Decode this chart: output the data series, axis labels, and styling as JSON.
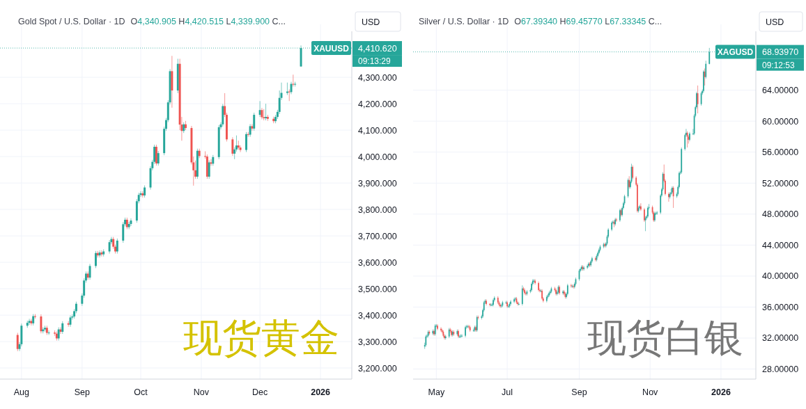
{
  "chart_data": [
    {
      "type": "candlestick",
      "title": "Gold Spot / U.S. Dollar · 1D",
      "subtitle": "O4,340.905  H4,420.515  L4,339.900  C...",
      "ylabel": "USD",
      "xlim": [
        "2025-07-21",
        "2026-01-17"
      ],
      "xticks": [
        {
          "value": "2025-08-01",
          "label": "Aug"
        },
        {
          "value": "2025-09-01",
          "label": "Sep"
        },
        {
          "value": "2025-10-01",
          "label": "Oct"
        },
        {
          "value": "2025-11-01",
          "label": "Nov"
        },
        {
          "value": "2025-12-01",
          "label": "Dec"
        },
        {
          "value": "2026-01-01",
          "label": "2026"
        }
      ],
      "ylim": [
        3158,
        4474
      ],
      "yticks": [
        {
          "value": 3200,
          "label": "3,200.000"
        },
        {
          "value": 3300,
          "label": "3,300.000"
        },
        {
          "value": 3400,
          "label": "3,400.000"
        },
        {
          "value": 3500,
          "label": "3,500.000"
        },
        {
          "value": 3600,
          "label": "3,600.000"
        },
        {
          "value": 3700,
          "label": "3,700.000"
        },
        {
          "value": 3800,
          "label": "3,800.000"
        },
        {
          "value": 3900,
          "label": "3,900.000"
        },
        {
          "value": 4000,
          "label": "4,000.000"
        },
        {
          "value": 4100,
          "label": "4,100.000"
        },
        {
          "value": 4200,
          "label": "4,200.000"
        },
        {
          "value": 4300,
          "label": "4,300.000"
        }
      ],
      "grid": true,
      "ref_lines": [
        {
          "axis": "y",
          "value": 4410.62,
          "label": "4,410.620",
          "color": "#26a69a",
          "line_style": "dotted"
        }
      ],
      "annotations": [
        {
          "text": "XAUUSD",
          "y": 4410.62
        },
        "09:13:29",
        "现货黄金"
      ],
      "x": [
        "2025-07-30",
        "2025-07-31",
        "2025-08-01",
        "2025-08-04",
        "2025-08-05",
        "2025-08-06",
        "2025-08-07",
        "2025-08-08",
        "2025-08-11",
        "2025-08-12",
        "2025-08-13",
        "2025-08-14",
        "2025-08-15",
        "2025-08-18",
        "2025-08-19",
        "2025-08-20",
        "2025-08-21",
        "2025-08-22",
        "2025-08-25",
        "2025-08-26",
        "2025-08-27",
        "2025-08-28",
        "2025-08-29",
        "2025-09-01",
        "2025-09-02",
        "2025-09-03",
        "2025-09-04",
        "2025-09-05",
        "2025-09-08",
        "2025-09-09",
        "2025-09-10",
        "2025-09-11",
        "2025-09-12",
        "2025-09-15",
        "2025-09-16",
        "2025-09-17",
        "2025-09-18",
        "2025-09-19",
        "2025-09-22",
        "2025-09-23",
        "2025-09-24",
        "2025-09-25",
        "2025-09-26",
        "2025-09-29",
        "2025-09-30",
        "2025-10-01",
        "2025-10-02",
        "2025-10-03",
        "2025-10-06",
        "2025-10-07",
        "2025-10-08",
        "2025-10-09",
        "2025-10-10",
        "2025-10-13",
        "2025-10-14",
        "2025-10-15",
        "2025-10-16",
        "2025-10-17",
        "2025-10-20",
        "2025-10-21",
        "2025-10-22",
        "2025-10-23",
        "2025-10-24",
        "2025-10-27",
        "2025-10-28",
        "2025-10-29",
        "2025-10-30",
        "2025-10-31",
        "2025-11-03",
        "2025-11-04",
        "2025-11-05",
        "2025-11-06",
        "2025-11-07",
        "2025-11-10",
        "2025-11-11",
        "2025-11-12",
        "2025-11-13",
        "2025-11-14",
        "2025-11-17",
        "2025-11-18",
        "2025-11-19",
        "2025-11-20",
        "2025-11-21",
        "2025-11-24",
        "2025-11-25",
        "2025-11-26",
        "2025-11-27",
        "2025-11-28",
        "2025-12-01",
        "2025-12-02",
        "2025-12-03",
        "2025-12-04",
        "2025-12-05",
        "2025-12-08",
        "2025-12-09",
        "2025-12-10",
        "2025-12-11",
        "2025-12-12",
        "2025-12-15",
        "2025-12-16",
        "2025-12-17",
        "2025-12-18",
        "2025-12-19",
        "2025-12-22"
      ],
      "ohlc": [
        [
          3325,
          3333,
          3264,
          3272
        ],
        [
          3272,
          3298,
          3264,
          3290
        ],
        [
          3290,
          3368,
          3282,
          3360
        ],
        [
          3360,
          3379,
          3352,
          3371
        ],
        [
          3371,
          3386,
          3363,
          3378
        ],
        [
          3378,
          3386,
          3361,
          3369
        ],
        [
          3369,
          3404,
          3361,
          3396
        ],
        [
          3396,
          3404,
          3387,
          3395
        ],
        [
          3395,
          3403,
          3331,
          3339
        ],
        [
          3339,
          3354,
          3331,
          3346
        ],
        [
          3346,
          3360,
          3338,
          3352
        ],
        [
          3352,
          3360,
          3325,
          3333
        ],
        [
          3333,
          3342,
          3325,
          3334
        ],
        [
          3334,
          3342,
          3322,
          3330
        ],
        [
          3330,
          3338,
          3304,
          3312
        ],
        [
          3312,
          3354,
          3304,
          3346
        ],
        [
          3346,
          3354,
          3329,
          3337
        ],
        [
          3337,
          3377,
          3329,
          3369
        ],
        [
          3369,
          3377,
          3356,
          3364
        ],
        [
          3364,
          3399,
          3356,
          3391
        ],
        [
          3391,
          3403,
          3383,
          3395
        ],
        [
          3395,
          3423,
          3387,
          3415
        ],
        [
          3415,
          3451,
          3407,
          3443
        ],
        [
          3443,
          3482,
          3435,
          3474
        ],
        [
          3474,
          3539,
          3466,
          3531
        ],
        [
          3531,
          3565,
          3523,
          3557
        ],
        [
          3557,
          3565,
          3534,
          3542
        ],
        [
          3542,
          3594,
          3534,
          3586
        ],
        [
          3586,
          3643,
          3578,
          3635
        ],
        [
          3635,
          3643,
          3618,
          3626
        ],
        [
          3626,
          3645,
          3618,
          3637
        ],
        [
          3637,
          3645,
          3622,
          3630
        ],
        [
          3630,
          3649,
          3622,
          3641
        ],
        [
          3641,
          3684,
          3633,
          3676
        ],
        [
          3676,
          3696,
          3668,
          3688
        ],
        [
          3688,
          3696,
          3651,
          3659
        ],
        [
          3659,
          3667,
          3633,
          3641
        ],
        [
          3641,
          3690,
          3633,
          3682
        ],
        [
          3682,
          3752,
          3674,
          3744
        ],
        [
          3744,
          3769,
          3736,
          3761
        ],
        [
          3761,
          3769,
          3725,
          3733
        ],
        [
          3733,
          3753,
          3725,
          3745
        ],
        [
          3745,
          3766,
          3737,
          3758
        ],
        [
          3758,
          3839,
          3750,
          3831
        ],
        [
          3831,
          3863,
          3823,
          3855
        ],
        [
          3855,
          3869,
          3847,
          3861
        ],
        [
          3861,
          3869,
          3845,
          3853
        ],
        [
          3853,
          3891,
          3845,
          3883
        ],
        [
          3883,
          3964,
          3875,
          3956
        ],
        [
          3956,
          3988,
          3948,
          3980
        ],
        [
          3980,
          4045,
          3972,
          4037
        ],
        [
          4037,
          4045,
          3966,
          3974
        ],
        [
          3974,
          4021,
          3966,
          4013
        ],
        [
          4013,
          4113,
          4005,
          4105
        ],
        [
          4105,
          4146,
          4097,
          4138
        ],
        [
          4138,
          4213,
          4130,
          4205
        ],
        [
          4205,
          4331,
          4197,
          4323
        ],
        [
          4323,
          4381,
          4185,
          4250
        ],
        [
          4250,
          4370,
          4240,
          4351
        ],
        [
          4351,
          4370,
          4100,
          4121
        ],
        [
          4121,
          4150,
          4060,
          4097
        ],
        [
          4097,
          4130,
          4089,
          4122
        ],
        [
          4122,
          4135,
          4100,
          4108
        ],
        [
          4108,
          4116,
          3970,
          3978
        ],
        [
          3978,
          4000,
          3890,
          3948
        ],
        [
          3948,
          3985,
          3916,
          3924
        ],
        [
          3924,
          4030,
          3916,
          4022
        ],
        [
          4022,
          4030,
          3994,
          4002
        ],
        [
          4002,
          4020,
          3992,
          4000
        ],
        [
          4000,
          4008,
          3916,
          3924
        ],
        [
          3924,
          3986,
          3916,
          3978
        ],
        [
          3978,
          3990,
          3965,
          3973
        ],
        [
          3973,
          4006,
          3965,
          3998
        ],
        [
          3998,
          4119,
          3990,
          4111
        ],
        [
          4111,
          4130,
          4103,
          4122
        ],
        [
          4122,
          4199,
          4114,
          4191
        ],
        [
          4191,
          4240,
          4150,
          4158
        ],
        [
          4158,
          4166,
          4057,
          4065
        ],
        [
          4065,
          4073,
          4003,
          4011
        ],
        [
          4011,
          4035,
          3990,
          4027
        ],
        [
          4027,
          4080,
          4019,
          4042
        ],
        [
          4042,
          4060,
          4026,
          4034
        ],
        [
          4034,
          4042,
          4017,
          4025
        ],
        [
          4025,
          4093,
          4017,
          4085
        ],
        [
          4085,
          4093,
          4075,
          4083
        ],
        [
          4083,
          4123,
          4075,
          4115
        ],
        [
          4115,
          4123,
          4098,
          4106
        ],
        [
          4106,
          4166,
          4098,
          4158
        ],
        [
          4158,
          4210,
          4150,
          4176
        ],
        [
          4176,
          4184,
          4141,
          4149
        ],
        [
          4149,
          4180,
          4137,
          4145
        ],
        [
          4145,
          4200,
          4137,
          4150
        ],
        [
          4150,
          4158,
          4135,
          4143
        ],
        [
          4143,
          4151,
          4126,
          4134
        ],
        [
          4134,
          4158,
          4126,
          4150
        ],
        [
          4150,
          4177,
          4142,
          4169
        ],
        [
          4169,
          4250,
          4161,
          4222
        ],
        [
          4222,
          4280,
          4214,
          4241
        ],
        [
          4241,
          4280,
          4233,
          4246
        ],
        [
          4246,
          4254,
          4210,
          4244
        ],
        [
          4244,
          4283,
          4236,
          4275
        ],
        [
          4275,
          4310,
          4265,
          4273
        ],
        [
          4273,
          4283,
          4265,
          4275
        ],
        [
          4340.905,
          4420.515,
          4339.9,
          4410.62
        ]
      ]
    },
    {
      "type": "candlestick",
      "title": "Silver / U.S. Dollar · 1D",
      "subtitle": "O67.39340  H69.45770  L67.33345  C...",
      "ylabel": "USD",
      "xlim": [
        "2025-04-11",
        "2026-01-31"
      ],
      "xticks": [
        {
          "value": "2025-05-01",
          "label": "May"
        },
        {
          "value": "2025-07-01",
          "label": "Jul"
        },
        {
          "value": "2025-09-01",
          "label": "Sep"
        },
        {
          "value": "2025-11-01",
          "label": "Nov"
        },
        {
          "value": "2026-01-01",
          "label": "2026"
        }
      ],
      "ylim": [
        26.7,
        71.6
      ],
      "yticks": [
        {
          "value": 28,
          "label": "28.00000"
        },
        {
          "value": 32,
          "label": "32.00000"
        },
        {
          "value": 36,
          "label": "36.00000"
        },
        {
          "value": 40,
          "label": "40.00000"
        },
        {
          "value": 44,
          "label": "44.00000"
        },
        {
          "value": 48,
          "label": "48.00000"
        },
        {
          "value": 52,
          "label": "52.00000"
        },
        {
          "value": 56,
          "label": "56.00000"
        },
        {
          "value": 60,
          "label": "60.00000"
        },
        {
          "value": 64,
          "label": "64.00000"
        }
      ],
      "grid": true,
      "ref_lines": [
        {
          "axis": "y",
          "value": 68.9397,
          "label": "68.93970",
          "color": "#26a69a",
          "line_style": "dotted"
        }
      ],
      "annotations": [
        {
          "text": "XAGUSD",
          "y": 68.9397
        },
        "09:12:53",
        "现货白银"
      ],
      "x": [
        "2025-04-21",
        "2025-04-22",
        "2025-04-23",
        "2025-04-24",
        "2025-04-25",
        "2025-04-28",
        "2025-04-29",
        "2025-04-30",
        "2025-05-01",
        "2025-05-02",
        "2025-05-05",
        "2025-05-06",
        "2025-05-07",
        "2025-05-08",
        "2025-05-09",
        "2025-05-12",
        "2025-05-13",
        "2025-05-14",
        "2025-05-15",
        "2025-05-16",
        "2025-05-19",
        "2025-05-20",
        "2025-05-21",
        "2025-05-22",
        "2025-05-23",
        "2025-05-26",
        "2025-05-27",
        "2025-05-28",
        "2025-05-29",
        "2025-05-30",
        "2025-06-02",
        "2025-06-03",
        "2025-06-04",
        "2025-06-05",
        "2025-06-06",
        "2025-06-09",
        "2025-06-10",
        "2025-06-11",
        "2025-06-12",
        "2025-06-13",
        "2025-06-16",
        "2025-06-17",
        "2025-06-18",
        "2025-06-19",
        "2025-06-20",
        "2025-06-23",
        "2025-06-24",
        "2025-06-25",
        "2025-06-26",
        "2025-06-27",
        "2025-06-30",
        "2025-07-01",
        "2025-07-02",
        "2025-07-03",
        "2025-07-04",
        "2025-07-07",
        "2025-07-08",
        "2025-07-09",
        "2025-07-10",
        "2025-07-11",
        "2025-07-14",
        "2025-07-15",
        "2025-07-16",
        "2025-07-17",
        "2025-07-18",
        "2025-07-21",
        "2025-07-22",
        "2025-07-23",
        "2025-07-24",
        "2025-07-25",
        "2025-07-28",
        "2025-07-29",
        "2025-07-30",
        "2025-07-31",
        "2025-08-01",
        "2025-08-04",
        "2025-08-05",
        "2025-08-06",
        "2025-08-07",
        "2025-08-08",
        "2025-08-11",
        "2025-08-12",
        "2025-08-13",
        "2025-08-14",
        "2025-08-15",
        "2025-08-18",
        "2025-08-19",
        "2025-08-20",
        "2025-08-21",
        "2025-08-22",
        "2025-08-25",
        "2025-08-26",
        "2025-08-27",
        "2025-08-28",
        "2025-08-29",
        "2025-09-01",
        "2025-09-02",
        "2025-09-03",
        "2025-09-04",
        "2025-09-05",
        "2025-09-08",
        "2025-09-09",
        "2025-09-10",
        "2025-09-11",
        "2025-09-12",
        "2025-09-15",
        "2025-09-16",
        "2025-09-17",
        "2025-09-18",
        "2025-09-19",
        "2025-09-22",
        "2025-09-23",
        "2025-09-24",
        "2025-09-25",
        "2025-09-26",
        "2025-09-29",
        "2025-09-30",
        "2025-10-01",
        "2025-10-02",
        "2025-10-03",
        "2025-10-06",
        "2025-10-07",
        "2025-10-08",
        "2025-10-09",
        "2025-10-10",
        "2025-10-13",
        "2025-10-14",
        "2025-10-15",
        "2025-10-16",
        "2025-10-17",
        "2025-10-20",
        "2025-10-21",
        "2025-10-22",
        "2025-10-23",
        "2025-10-24",
        "2025-10-27",
        "2025-10-28",
        "2025-10-29",
        "2025-10-30",
        "2025-10-31",
        "2025-11-03",
        "2025-11-04",
        "2025-11-05",
        "2025-11-06",
        "2025-11-07",
        "2025-11-10",
        "2025-11-11",
        "2025-11-12",
        "2025-11-13",
        "2025-11-14",
        "2025-11-17",
        "2025-11-18",
        "2025-11-19",
        "2025-11-20",
        "2025-11-21",
        "2025-11-24",
        "2025-11-25",
        "2025-11-26",
        "2025-11-27",
        "2025-11-28",
        "2025-12-01",
        "2025-12-02",
        "2025-12-03",
        "2025-12-04",
        "2025-12-05",
        "2025-12-08",
        "2025-12-09",
        "2025-12-10",
        "2025-12-11",
        "2025-12-12",
        "2025-12-15",
        "2025-12-16",
        "2025-12-17",
        "2025-12-18",
        "2025-12-19",
        "2025-12-22"
      ],
      "ohlc": [
        [
          30.9,
          31.4,
          30.6,
          31.1
        ],
        [
          31.1,
          32.4,
          30.9,
          32.2
        ],
        [
          32.2,
          32.5,
          32.0,
          32.3
        ],
        [
          32.3,
          33.0,
          32.1,
          32.8
        ],
        [
          32.8,
          33.0,
          32.4,
          32.6
        ],
        [
          32.6,
          33.1,
          32.4,
          32.9
        ],
        [
          32.9,
          33.1,
          32.3,
          32.5
        ],
        [
          32.5,
          33.8,
          32.3,
          33.6
        ],
        [
          33.6,
          33.8,
          33.4,
          33.6
        ],
        [
          33.6,
          33.8,
          33.0,
          33.2
        ],
        [
          33.2,
          33.4,
          32.8,
          33.0
        ],
        [
          33.0,
          33.2,
          32.6,
          32.8
        ],
        [
          32.8,
          33.0,
          32.1,
          32.3
        ],
        [
          32.3,
          32.5,
          31.8,
          32.0
        ],
        [
          32.0,
          32.4,
          31.8,
          32.2
        ],
        [
          32.2,
          33.3,
          32.0,
          33.1
        ],
        [
          33.1,
          33.3,
          32.7,
          32.9
        ],
        [
          32.9,
          33.1,
          32.2,
          32.4
        ],
        [
          32.4,
          33.0,
          32.2,
          32.8
        ],
        [
          32.8,
          33.0,
          32.3,
          32.5
        ],
        [
          32.5,
          33.1,
          32.3,
          32.9
        ],
        [
          32.9,
          33.1,
          32.0,
          32.2
        ],
        [
          32.2,
          32.4,
          32.0,
          32.2
        ],
        [
          32.2,
          32.5,
          32.0,
          32.3
        ],
        [
          32.3,
          32.5,
          32.1,
          32.3
        ],
        [
          32.3,
          33.6,
          32.1,
          33.4
        ],
        [
          33.4,
          33.7,
          33.2,
          33.5
        ],
        [
          33.5,
          33.7,
          33.3,
          33.5
        ],
        [
          33.5,
          33.7,
          33.2,
          33.4
        ],
        [
          33.4,
          33.6,
          32.8,
          33.0
        ],
        [
          33.0,
          33.2,
          32.8,
          33.0
        ],
        [
          33.0,
          33.6,
          32.8,
          33.4
        ],
        [
          33.4,
          33.6,
          32.8,
          33.0
        ],
        [
          33.0,
          34.9,
          32.8,
          34.7
        ],
        [
          34.7,
          34.9,
          34.4,
          34.6
        ],
        [
          34.6,
          35.0,
          34.4,
          34.8
        ],
        [
          34.8,
          35.8,
          34.6,
          35.6
        ],
        [
          35.6,
          36.8,
          35.4,
          36.6
        ],
        [
          36.6,
          37.0,
          36.4,
          36.8
        ],
        [
          36.8,
          37.0,
          36.2,
          36.4
        ],
        [
          36.4,
          36.5,
          36.1,
          36.3
        ],
        [
          36.3,
          36.5,
          36.1,
          36.3
        ],
        [
          36.3,
          36.5,
          36.1,
          36.3
        ],
        [
          36.3,
          37.1,
          36.1,
          36.9
        ],
        [
          36.9,
          37.4,
          36.7,
          37.2
        ],
        [
          37.2,
          37.4,
          36.4,
          36.6
        ],
        [
          36.6,
          36.8,
          36.1,
          36.3
        ],
        [
          36.3,
          36.5,
          35.9,
          36.1
        ],
        [
          36.1,
          36.4,
          35.9,
          36.2
        ],
        [
          36.2,
          36.8,
          36.0,
          36.6
        ],
        [
          36.6,
          36.8,
          36.4,
          36.6
        ],
        [
          36.6,
          36.8,
          35.9,
          36.1
        ],
        [
          36.1,
          36.3,
          35.9,
          36.1
        ],
        [
          36.1,
          36.6,
          35.9,
          36.4
        ],
        [
          36.4,
          36.9,
          36.2,
          36.7
        ],
        [
          36.7,
          37.2,
          36.5,
          37.0
        ],
        [
          37.0,
          37.3,
          36.8,
          37.1
        ],
        [
          37.1,
          37.3,
          36.4,
          36.6
        ],
        [
          36.6,
          36.8,
          36.2,
          36.4
        ],
        [
          36.4,
          36.6,
          36.2,
          36.4
        ],
        [
          36.4,
          38.8,
          36.2,
          38.4
        ],
        [
          38.4,
          38.6,
          38.0,
          38.2
        ],
        [
          38.2,
          38.4,
          37.6,
          37.8
        ],
        [
          37.8,
          38.0,
          37.5,
          37.7
        ],
        [
          37.7,
          38.2,
          37.5,
          38.0
        ],
        [
          38.0,
          38.4,
          37.8,
          38.2
        ],
        [
          38.2,
          39.2,
          38.0,
          39.0
        ],
        [
          39.0,
          39.6,
          38.8,
          39.4
        ],
        [
          39.4,
          39.6,
          39.2,
          39.4
        ],
        [
          39.4,
          39.6,
          38.9,
          39.1
        ],
        [
          39.1,
          39.3,
          38.0,
          38.2
        ],
        [
          38.2,
          38.4,
          37.9,
          38.1
        ],
        [
          38.1,
          38.3,
          37.9,
          38.1
        ],
        [
          38.1,
          38.3,
          36.9,
          37.1
        ],
        [
          37.1,
          37.3,
          36.6,
          36.8
        ],
        [
          36.8,
          37.5,
          36.6,
          37.3
        ],
        [
          37.3,
          37.7,
          37.1,
          37.5
        ],
        [
          37.5,
          38.0,
          37.3,
          37.8
        ],
        [
          37.8,
          38.2,
          37.6,
          38.0
        ],
        [
          38.0,
          38.6,
          37.8,
          38.4
        ],
        [
          38.4,
          38.6,
          38.0,
          38.2
        ],
        [
          38.2,
          38.4,
          37.5,
          37.7
        ],
        [
          37.7,
          38.1,
          37.5,
          37.9
        ],
        [
          37.9,
          38.8,
          37.7,
          38.6
        ],
        [
          38.6,
          38.8,
          37.6,
          37.8
        ],
        [
          37.8,
          38.2,
          37.6,
          38.0
        ],
        [
          38.0,
          38.2,
          37.5,
          37.7
        ],
        [
          37.7,
          37.9,
          37.1,
          37.3
        ],
        [
          37.3,
          37.9,
          37.1,
          37.7
        ],
        [
          37.7,
          39.0,
          37.5,
          38.8
        ],
        [
          38.8,
          39.0,
          38.5,
          38.7
        ],
        [
          38.7,
          38.9,
          38.5,
          38.7
        ],
        [
          38.7,
          38.9,
          38.4,
          38.6
        ],
        [
          38.6,
          39.2,
          38.4,
          39.0
        ],
        [
          39.0,
          39.8,
          38.8,
          39.6
        ],
        [
          39.6,
          40.9,
          39.4,
          40.7
        ],
        [
          40.7,
          41.1,
          40.5,
          40.9
        ],
        [
          40.9,
          41.4,
          40.7,
          41.2
        ],
        [
          41.2,
          41.4,
          40.7,
          40.9
        ],
        [
          40.9,
          41.3,
          40.7,
          41.1
        ],
        [
          41.1,
          41.5,
          40.9,
          41.3
        ],
        [
          41.3,
          41.8,
          41.1,
          41.6
        ],
        [
          41.6,
          41.8,
          41.2,
          41.4
        ],
        [
          41.4,
          42.1,
          41.2,
          41.9
        ],
        [
          41.9,
          42.5,
          41.7,
          42.3
        ],
        [
          42.3,
          42.5,
          41.9,
          42.1
        ],
        [
          42.1,
          42.8,
          41.9,
          42.6
        ],
        [
          42.6,
          43.2,
          42.4,
          43.0
        ],
        [
          43.0,
          43.6,
          42.8,
          43.4
        ],
        [
          43.4,
          44.0,
          43.2,
          43.8
        ],
        [
          43.8,
          44.3,
          43.6,
          44.1
        ],
        [
          44.1,
          44.3,
          43.7,
          43.9
        ],
        [
          43.9,
          44.4,
          43.7,
          44.2
        ],
        [
          44.2,
          45.3,
          44.0,
          45.1
        ],
        [
          45.1,
          46.2,
          44.9,
          46.0
        ],
        [
          46.0,
          47.1,
          45.8,
          46.9
        ],
        [
          46.9,
          47.2,
          46.7,
          47.0
        ],
        [
          47.0,
          47.2,
          46.3,
          46.7
        ],
        [
          46.7,
          47.5,
          46.5,
          47.3
        ],
        [
          47.3,
          47.5,
          47.0,
          47.2
        ],
        [
          47.2,
          48.7,
          47.0,
          48.5
        ],
        [
          48.5,
          48.7,
          47.7,
          47.9
        ],
        [
          47.9,
          49.0,
          47.7,
          48.8
        ],
        [
          48.8,
          49.6,
          48.6,
          49.4
        ],
        [
          49.4,
          50.5,
          49.2,
          50.3
        ],
        [
          50.3,
          52.6,
          50.1,
          52.4
        ],
        [
          52.4,
          52.9,
          51.3,
          51.5
        ],
        [
          51.5,
          52.4,
          51.3,
          52.2
        ],
        [
          52.2,
          54.5,
          52.0,
          54.1
        ],
        [
          54.1,
          54.3,
          52.5,
          52.7
        ],
        [
          52.7,
          52.9,
          51.6,
          51.8
        ],
        [
          51.8,
          52.0,
          48.2,
          48.4
        ],
        [
          48.4,
          49.0,
          48.2,
          48.8
        ],
        [
          48.8,
          49.2,
          48.6,
          49.0
        ],
        [
          49.0,
          49.4,
          48.4,
          48.6
        ],
        [
          48.6,
          48.8,
          47.0,
          47.2
        ],
        [
          47.2,
          47.7,
          45.8,
          47.5
        ],
        [
          47.5,
          47.9,
          47.3,
          47.7
        ],
        [
          47.7,
          49.0,
          47.5,
          48.8
        ],
        [
          48.8,
          49.3,
          48.6,
          48.9
        ],
        [
          48.9,
          49.1,
          48.0,
          48.2
        ],
        [
          48.2,
          48.4,
          47.0,
          47.2
        ],
        [
          47.2,
          48.3,
          47.0,
          48.1
        ],
        [
          48.1,
          48.3,
          47.9,
          48.1
        ],
        [
          48.1,
          48.4,
          47.9,
          48.2
        ],
        [
          48.2,
          50.6,
          48.0,
          50.4
        ],
        [
          50.4,
          51.4,
          50.2,
          51.2
        ],
        [
          51.2,
          53.4,
          51.0,
          53.2
        ],
        [
          53.2,
          54.4,
          52.1,
          52.3
        ],
        [
          52.3,
          52.5,
          50.4,
          50.6
        ],
        [
          50.6,
          50.8,
          49.6,
          50.2
        ],
        [
          50.2,
          50.8,
          50.0,
          50.6
        ],
        [
          50.6,
          51.3,
          50.4,
          50.8
        ],
        [
          50.8,
          51.6,
          50.6,
          51.4
        ],
        [
          51.4,
          51.6,
          48.8,
          50.3
        ],
        [
          50.3,
          50.8,
          50.1,
          50.6
        ],
        [
          50.6,
          51.7,
          50.4,
          51.5
        ],
        [
          51.5,
          53.5,
          51.3,
          53.3
        ],
        [
          53.3,
          53.6,
          53.1,
          53.4
        ],
        [
          53.4,
          56.6,
          53.2,
          56.4
        ],
        [
          56.4,
          58.4,
          56.2,
          58.2
        ],
        [
          58.2,
          59.0,
          58.0,
          58.5
        ],
        [
          58.5,
          58.7,
          56.6,
          58.0
        ],
        [
          58.0,
          58.2,
          57.1,
          57.6
        ],
        [
          57.6,
          58.6,
          57.4,
          58.4
        ],
        [
          58.4,
          59.0,
          58.2,
          58.4
        ],
        [
          58.4,
          60.9,
          58.2,
          60.7
        ],
        [
          60.7,
          62.0,
          60.5,
          61.8
        ],
        [
          61.8,
          63.8,
          61.6,
          63.6
        ],
        [
          63.6,
          64.6,
          61.0,
          62.2
        ],
        [
          62.2,
          63.8,
          62.0,
          63.6
        ],
        [
          63.6,
          64.1,
          63.4,
          63.9
        ],
        [
          63.9,
          66.6,
          63.7,
          66.4
        ],
        [
          66.4,
          66.8,
          64.6,
          65.7
        ],
        [
          65.7,
          67.8,
          65.5,
          67.4
        ],
        [
          67.3934,
          69.4577,
          67.33345,
          68.9397
        ]
      ]
    }
  ]
}
